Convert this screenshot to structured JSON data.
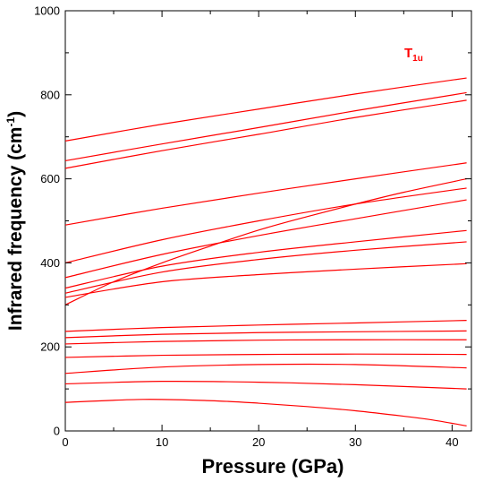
{
  "chart_data": {
    "type": "line",
    "xlabel": "Pressure (GPa)",
    "ylabel_main": "Infrared frequency (cm",
    "ylabel_sup": "-1",
    "ylabel_close": ")",
    "xlim": [
      0,
      42
    ],
    "ylim": [
      0,
      1000
    ],
    "xticks": [
      0,
      10,
      20,
      30,
      40
    ],
    "yticks": [
      0,
      200,
      400,
      600,
      800,
      1000
    ],
    "grid": false,
    "annotation": {
      "text": "T",
      "sub": "1u",
      "color": "#ff0000"
    },
    "series_color": "#ff0000",
    "series": [
      {
        "x": [
          0,
          10,
          20,
          30,
          41.5
        ],
        "y": [
          690,
          730,
          766,
          802,
          840
        ]
      },
      {
        "x": [
          0,
          10,
          20,
          30,
          41.5
        ],
        "y": [
          643,
          683,
          722,
          762,
          805
        ]
      },
      {
        "x": [
          0,
          10,
          20,
          30,
          41.5
        ],
        "y": [
          625,
          667,
          706,
          746,
          787
        ]
      },
      {
        "x": [
          0,
          10,
          20,
          30,
          41.5
        ],
        "y": [
          490,
          530,
          566,
          600,
          638
        ]
      },
      {
        "x": [
          0,
          10,
          20,
          30,
          41.5
        ],
        "y": [
          400,
          455,
          500,
          540,
          578
        ]
      },
      {
        "x": [
          0,
          5,
          10,
          15,
          20,
          25,
          30,
          35,
          41.5
        ],
        "y": [
          300,
          355,
          400,
          440,
          478,
          510,
          540,
          568,
          600
        ]
      },
      {
        "x": [
          0,
          10,
          20,
          30,
          41.5
        ],
        "y": [
          365,
          420,
          465,
          505,
          550
        ]
      },
      {
        "x": [
          0,
          10,
          20,
          30,
          41.5
        ],
        "y": [
          340,
          392,
          425,
          450,
          477
        ]
      },
      {
        "x": [
          0,
          10,
          20,
          30,
          41.5
        ],
        "y": [
          328,
          378,
          408,
          430,
          450
        ]
      },
      {
        "x": [
          0,
          10,
          20,
          30,
          41.5
        ],
        "y": [
          318,
          355,
          372,
          385,
          398
        ]
      },
      {
        "x": [
          0,
          10,
          20,
          30,
          41.5
        ],
        "y": [
          237,
          246,
          252,
          257,
          263
        ]
      },
      {
        "x": [
          0,
          10,
          20,
          30,
          41.5
        ],
        "y": [
          222,
          230,
          234,
          236,
          238
        ]
      },
      {
        "x": [
          0,
          10,
          20,
          30,
          41.5
        ],
        "y": [
          207,
          213,
          216,
          217,
          217
        ]
      },
      {
        "x": [
          0,
          10,
          20,
          30,
          41.5
        ],
        "y": [
          175,
          180,
          182,
          183,
          182
        ]
      },
      {
        "x": [
          0,
          10,
          20,
          30,
          41.5
        ],
        "y": [
          137,
          152,
          158,
          158,
          150
        ]
      },
      {
        "x": [
          0,
          10,
          20,
          30,
          41.5
        ],
        "y": [
          112,
          118,
          116,
          110,
          100
        ]
      },
      {
        "x": [
          0,
          8,
          15,
          20,
          25,
          30,
          35,
          38,
          41.5
        ],
        "y": [
          68,
          75,
          72,
          66,
          58,
          48,
          35,
          26,
          12
        ]
      }
    ]
  }
}
